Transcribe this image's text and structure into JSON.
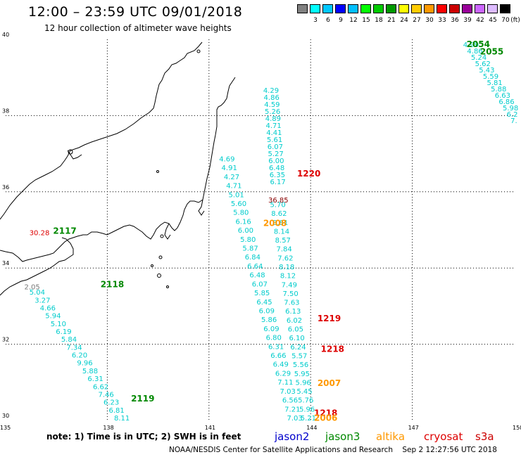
{
  "header": {
    "title": "12:00 – 23:59 UTC 09/01/2018",
    "subtitle": "12 hour collection of altimeter wave heights"
  },
  "colorbar": {
    "unit": "(ft)",
    "levels": [
      {
        "label": "",
        "color": "#808080"
      },
      {
        "label": "3",
        "color": "#00ffff"
      },
      {
        "label": "6",
        "color": "#00c8ff"
      },
      {
        "label": "9",
        "color": "#0000ff"
      },
      {
        "label": "12",
        "color": "#00bfff"
      },
      {
        "label": "15",
        "color": "#00ff00"
      },
      {
        "label": "18",
        "color": "#00cc00"
      },
      {
        "label": "21",
        "color": "#009900"
      },
      {
        "label": "24",
        "color": "#ffff00"
      },
      {
        "label": "27",
        "color": "#ffcc00"
      },
      {
        "label": "30",
        "color": "#ff9900"
      },
      {
        "label": "33",
        "color": "#ff0000"
      },
      {
        "label": "36",
        "color": "#cc0000"
      },
      {
        "label": "39",
        "color": "#990099"
      },
      {
        "label": "42",
        "color": "#cc66ff"
      },
      {
        "label": "45",
        "color": "#ddbbff"
      },
      {
        "label": "70",
        "color": "#000000"
      }
    ]
  },
  "map": {
    "lon_range": [
      135,
      150
    ],
    "lat_range": [
      30,
      40
    ],
    "lon_ticks": [
      "135",
      "138",
      "141",
      "144",
      "147",
      "150"
    ],
    "lat_ticks": [
      "40",
      "38",
      "36",
      "34",
      "32",
      "30"
    ]
  },
  "passes": [
    {
      "label": "2054",
      "lon": 148.6,
      "lat": 39.8,
      "color": "#008800"
    },
    {
      "label": "2055",
      "lon": 149.0,
      "lat": 39.6,
      "color": "#008800"
    },
    {
      "label": "1220",
      "lon": 143.6,
      "lat": 36.4,
      "color": "#dd0000"
    },
    {
      "label": "2008",
      "lon": 142.6,
      "lat": 35.1,
      "color": "#ff9900"
    },
    {
      "label": "2117",
      "lon": 136.4,
      "lat": 34.9,
      "color": "#008800"
    },
    {
      "label": "2118",
      "lon": 137.8,
      "lat": 33.5,
      "color": "#008800"
    },
    {
      "label": "1219",
      "lon": 144.2,
      "lat": 32.6,
      "color": "#dd0000"
    },
    {
      "label": "1218",
      "lon": 144.3,
      "lat": 31.8,
      "color": "#dd0000"
    },
    {
      "label": "2007",
      "lon": 144.2,
      "lat": 30.9,
      "color": "#ff9900"
    },
    {
      "label": "2119",
      "lon": 138.7,
      "lat": 30.5,
      "color": "#008800"
    },
    {
      "label": "1218",
      "lon": 144.1,
      "lat": 30.12,
      "color": "#dd0000"
    },
    {
      "label": "2006",
      "lon": 144.1,
      "lat": 29.99,
      "color": "#ff9900"
    }
  ],
  "tracks": [
    {
      "name": "track-1",
      "color": "#00cccc",
      "start": [
        148.5,
        39.8
      ],
      "end": [
        149.9,
        37.8
      ],
      "values": [
        "4.99",
        "4.86",
        "5.24",
        "5.62",
        "5.43",
        "5.59",
        "5.81",
        "5.88",
        "6.63",
        "6.86",
        "5.98",
        "6.2",
        "7."
      ]
    },
    {
      "name": "track-2",
      "color": "#00cccc",
      "start": [
        142.6,
        38.6
      ],
      "end": [
        142.8,
        36.2
      ],
      "values": [
        "4.29",
        "4.86",
        "4.59",
        "5.26",
        "4.89",
        "4.71",
        "4.41",
        "5.61",
        "6.07",
        "5.27",
        "6.00",
        "6.48",
        "6.35",
        "6.17"
      ]
    },
    {
      "name": "track-3",
      "color": "#00cccc",
      "start": [
        141.3,
        36.8
      ],
      "end": [
        143.3,
        30.0
      ],
      "values": [
        "4.69",
        "4.91",
        "4.27",
        "4.71",
        "5.01",
        "5.60",
        "5.80",
        "6.16",
        "6.00",
        "5.80",
        "5.87",
        "6.84",
        "6.64",
        "6.48",
        "6.07",
        "5.85",
        "6.45",
        "6.09",
        "5.86",
        "6.09",
        "6.80",
        "6.31",
        "6.66",
        "6.49",
        "6.29",
        "7.11",
        "7.03",
        "6.56",
        "7.21",
        "7.03"
      ]
    },
    {
      "name": "track-4",
      "color": "#00cccc",
      "start": [
        142.8,
        35.6
      ],
      "end": [
        143.7,
        30.0
      ],
      "values": [
        "5.70",
        "8.62",
        "8.81",
        "8.14",
        "8.57",
        "7.84",
        "7.62",
        "8.18",
        "8.12",
        "7.49",
        "7.50",
        "7.63",
        "6.13",
        "6.02",
        "6.05",
        "6.10",
        "6.24",
        "5.57",
        "5.56",
        "5.95",
        "5.96",
        "5.45",
        "5.76",
        "5.96",
        "5.21"
      ]
    },
    {
      "name": "track-5",
      "color": "#00cccc",
      "start": [
        135.7,
        33.3
      ],
      "end": [
        138.2,
        30.0
      ],
      "values": [
        "5.04",
        "3.27",
        "4.66",
        "5.94",
        "5.10",
        "6.19",
        "5.84",
        "7.34",
        "6.20",
        "9.96",
        "5.88",
        "6.31",
        "6.62",
        "7.46",
        "6.23",
        "6.81",
        "8.11"
      ]
    }
  ],
  "special_values": [
    {
      "label": "36.85",
      "lon": 142.75,
      "lat": 35.72,
      "color": "#880000"
    },
    {
      "label": "30.28",
      "lon": 135.7,
      "lat": 34.86,
      "color": "#dd0000"
    },
    {
      "label": "2.05",
      "lon": 135.55,
      "lat": 33.44,
      "color": "#777777"
    }
  ],
  "legend": {
    "note": "note:  1) Time is in UTC; 2) SWH is in feet",
    "satellites": [
      {
        "label": "jason2",
        "color": "#0000cc"
      },
      {
        "label": "jason3",
        "color": "#008800"
      },
      {
        "label": "altika",
        "color": "#ff9900"
      },
      {
        "label": "cryosat",
        "color": "#dd0000"
      },
      {
        "label": "s3a",
        "color": "#cc0000"
      }
    ],
    "credit": "NOAA/NESDIS Center for Satellite Applications and Research",
    "timestamp": "Sep  2 12:27:56 UTC 2018"
  }
}
